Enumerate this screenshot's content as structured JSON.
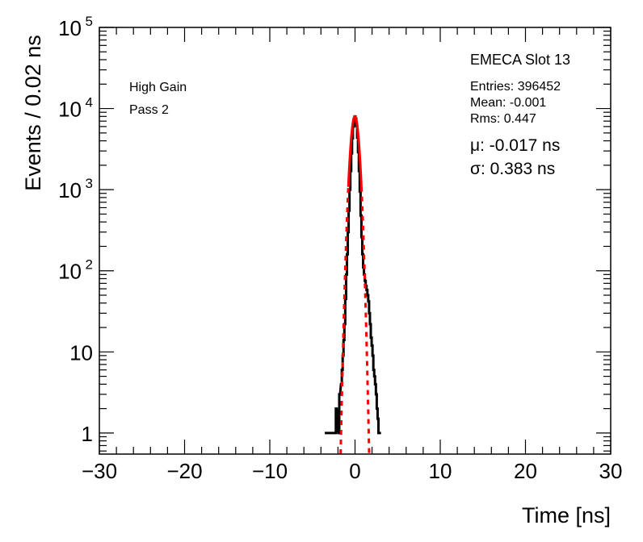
{
  "chart_data": {
    "type": "histogram",
    "xlabel": "Time [ns]",
    "ylabel": "Events / 0.02 ns",
    "xlim": [
      -30,
      30
    ],
    "ylim": [
      0.55,
      100000
    ],
    "yscale": "log",
    "grid": false,
    "x_ticks": [
      {
        "value": -30,
        "label": "−30"
      },
      {
        "value": -20,
        "label": "−20"
      },
      {
        "value": -10,
        "label": "−10"
      },
      {
        "value": 0,
        "label": "0"
      },
      {
        "value": 10,
        "label": "10"
      },
      {
        "value": 20,
        "label": "20"
      },
      {
        "value": 30,
        "label": "30"
      }
    ],
    "y_ticks": [
      {
        "value": 1,
        "base": "1",
        "exp": ""
      },
      {
        "value": 10,
        "base": "10",
        "exp": ""
      },
      {
        "value": 100,
        "base": "10",
        "exp": "2"
      },
      {
        "value": 1000,
        "base": "10",
        "exp": "3"
      },
      {
        "value": 10000,
        "base": "10",
        "exp": "4"
      },
      {
        "value": 100000,
        "base": "10",
        "exp": "5"
      }
    ],
    "histogram": {
      "color": "#000000",
      "x": [
        -3.5,
        -3.4,
        -2.3,
        -2.2,
        -1.9,
        -1.8,
        -1.6,
        -1.5,
        -1.4,
        -1.3,
        -1.2,
        -1.1,
        -1.0,
        -0.9,
        -0.8,
        -0.7,
        -0.6,
        -0.5,
        -0.4,
        -0.3,
        -0.2,
        -0.1,
        0.0,
        0.1,
        0.2,
        0.3,
        0.4,
        0.5,
        0.6,
        0.7,
        0.8,
        0.9,
        1.0,
        1.1,
        1.2,
        1.3,
        1.4,
        1.5,
        1.6,
        1.7,
        1.8,
        1.9,
        2.0,
        2.1,
        2.2,
        2.3,
        2.4,
        2.5,
        2.6,
        2.7,
        2.8,
        2.9,
        3.0
      ],
      "y": [
        1,
        1,
        1,
        2,
        1,
        3,
        4,
        6,
        9,
        14,
        22,
        45,
        90,
        160,
        300,
        550,
        1000,
        1700,
        2800,
        4300,
        6000,
        7400,
        8000,
        7500,
        6100,
        4400,
        2900,
        1700,
        950,
        480,
        260,
        160,
        110,
        90,
        75,
        65,
        58,
        50,
        42,
        30,
        22,
        15,
        12,
        9,
        6,
        5,
        4,
        3,
        2,
        1.5,
        1,
        1,
        1
      ]
    },
    "fit": {
      "type": "gaussian",
      "color": "#ff0000",
      "mu": -0.017,
      "sigma": 0.383,
      "amplitude": 8000,
      "solid_range_sigma": 2
    },
    "annotations": {
      "gain": "High Gain",
      "pass": "Pass 2",
      "slot": "EMECA Slot 13",
      "entries": "Entries: 396452",
      "mean": "Mean: -0.001",
      "rms": "Rms: 0.447",
      "mu": "μ: -0.017 ns",
      "sigma": "σ: 0.383 ns"
    }
  }
}
